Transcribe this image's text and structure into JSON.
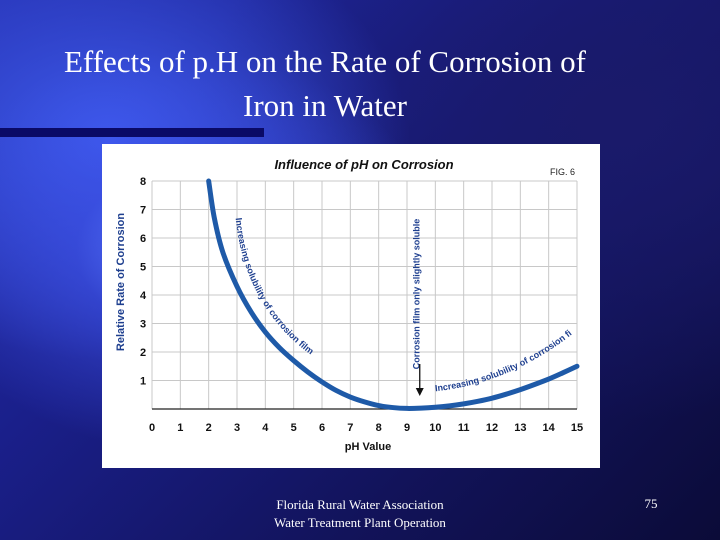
{
  "slide": {
    "title_line1": "Effects of p.H on the Rate of Corrosion of",
    "title_line2": "Iron in Water",
    "footer_line1": "Florida Rural Water Association",
    "footer_line2": "Water Treatment Plant Operation",
    "page_number": "75"
  },
  "chart_data": {
    "type": "line",
    "title": "Influence of pH on Corrosion",
    "fig_label": "FIG. 6",
    "xlabel": "pH Value",
    "ylabel": "Relative Rate of Corrosion",
    "xlim": [
      0,
      15
    ],
    "ylim": [
      0,
      8
    ],
    "xticks": [
      "0",
      "1",
      "2",
      "3",
      "4",
      "5",
      "6",
      "7",
      "8",
      "9",
      "10",
      "11",
      "12",
      "13",
      "14",
      "15"
    ],
    "yticks": [
      "1",
      "2",
      "3",
      "4",
      "5",
      "6",
      "7",
      "8"
    ],
    "grid": true,
    "curve_color": "#1e5aa8",
    "series": [
      {
        "x": [
          2.0,
          2.2,
          2.5,
          3.0,
          3.5,
          4.0,
          4.5,
          5.0,
          5.5,
          6.0,
          6.5,
          7.0,
          7.5,
          8.0,
          8.5,
          9.0,
          9.5,
          10.0,
          10.5,
          11.0,
          11.5,
          12.0,
          12.5,
          13.0,
          13.5,
          14.0,
          14.5,
          15.0
        ],
        "y": [
          8.0,
          6.7,
          5.5,
          4.3,
          3.4,
          2.7,
          2.15,
          1.7,
          1.3,
          0.95,
          0.65,
          0.42,
          0.25,
          0.12,
          0.05,
          0.02,
          0.03,
          0.06,
          0.11,
          0.18,
          0.27,
          0.38,
          0.52,
          0.68,
          0.86,
          1.05,
          1.27,
          1.5
        ]
      }
    ],
    "annotations": [
      {
        "text": "Increasing solubility of corrosion film"
      },
      {
        "text": "Corrosion film only slightly soluble"
      },
      {
        "text": "Increasing solubility of corrosion film"
      }
    ]
  }
}
